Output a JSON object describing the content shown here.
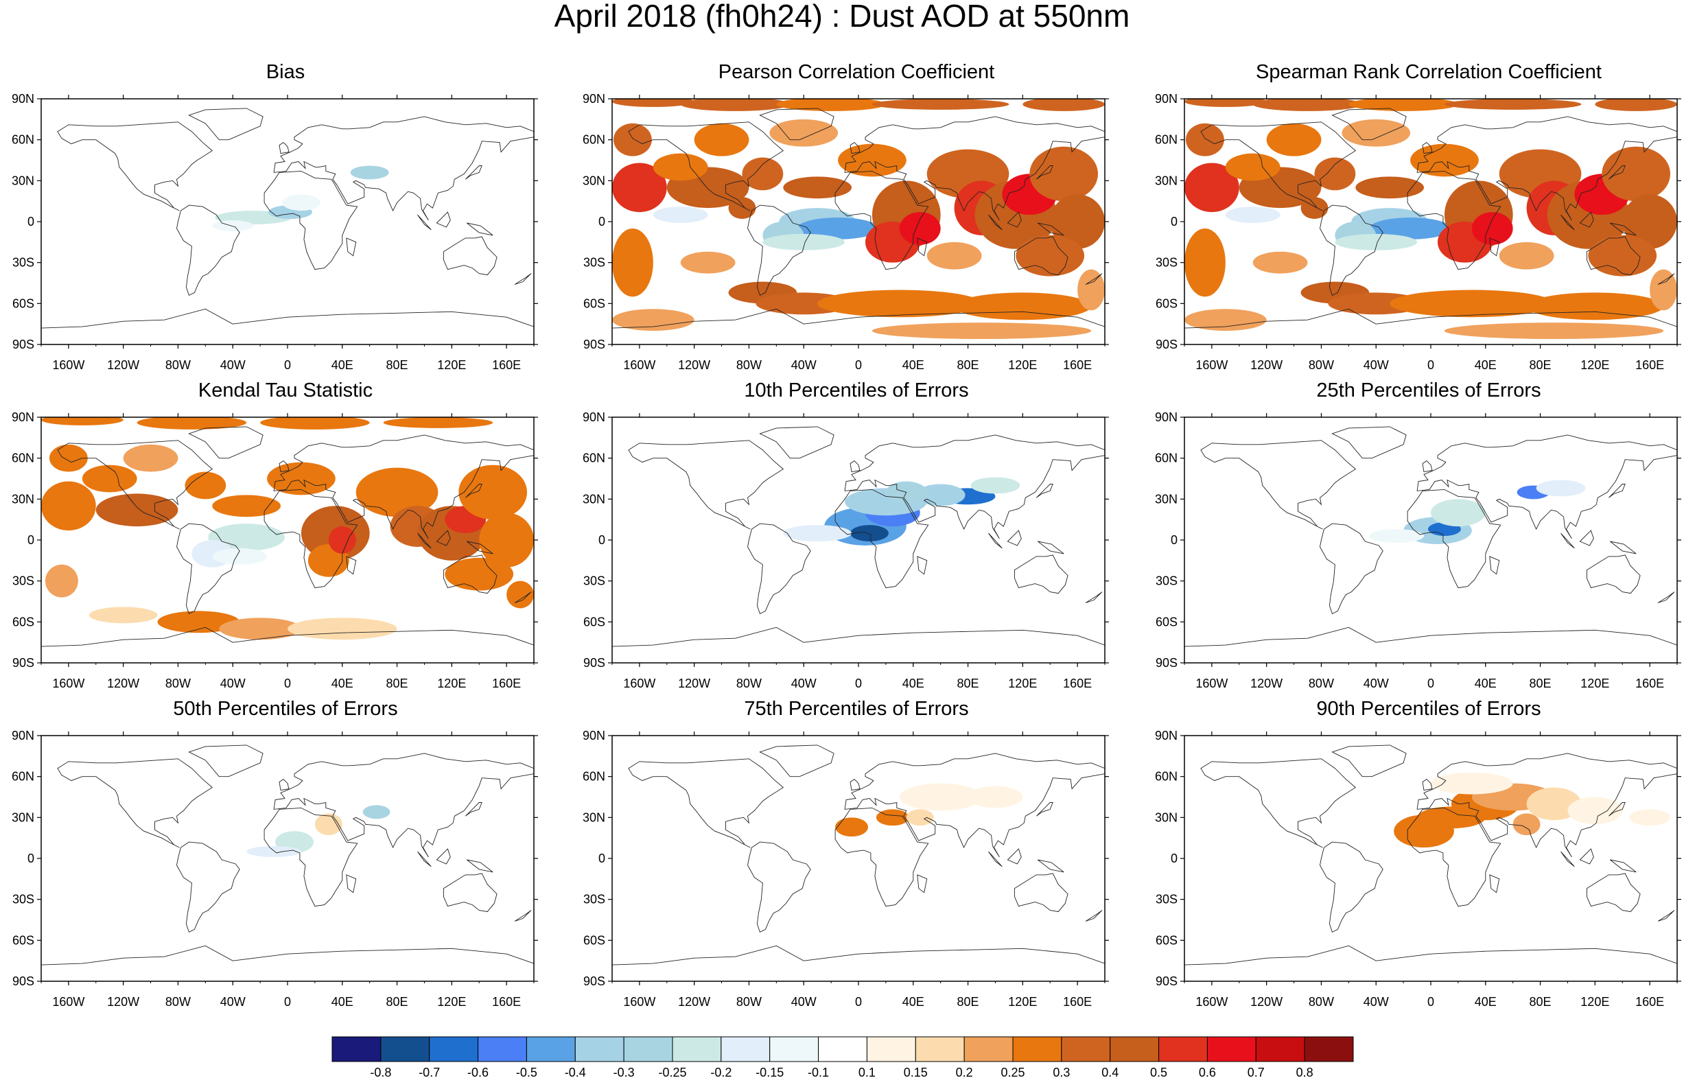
{
  "title": "April 2018 (fh0h24) : Dust AOD at 550nm",
  "lat_labels": [
    "90N",
    "60N",
    "30N",
    "0",
    "30S",
    "60S",
    "90S"
  ],
  "lon_labels": [
    "160W",
    "120W",
    "80W",
    "40W",
    "0",
    "40E",
    "80E",
    "120E",
    "160E"
  ],
  "panels": [
    {
      "title": "Bias",
      "pattern": "bias"
    },
    {
      "title": "Pearson Correlation Coefficient",
      "pattern": "corr"
    },
    {
      "title": "Spearman Rank Correlation Coefficient",
      "pattern": "corr"
    },
    {
      "title": "Kendal Tau Statistic",
      "pattern": "tau"
    },
    {
      "title": "10th Percentiles of Errors",
      "pattern": "p10"
    },
    {
      "title": "25th Percentiles of Errors",
      "pattern": "p25"
    },
    {
      "title": "50th Percentiles of Errors",
      "pattern": "p50"
    },
    {
      "title": "75th Percentiles of Errors",
      "pattern": "p75"
    },
    {
      "title": "90th Percentiles of Errors",
      "pattern": "p90"
    }
  ],
  "colorbar": {
    "labels": [
      "-0.8",
      "-0.7",
      "-0.6",
      "-0.5",
      "-0.4",
      "-0.3",
      "-0.25",
      "-0.2",
      "-0.15",
      "-0.1",
      "0.1",
      "0.15",
      "0.2",
      "0.25",
      "0.3",
      "0.4",
      "0.5",
      "0.6",
      "0.7",
      "0.8"
    ],
    "colors": [
      "#1a1a7a",
      "#134e8f",
      "#1f6fcf",
      "#4a7ff5",
      "#5aa2e6",
      "#a6d2e6",
      "#a8d4e2",
      "#cce9e6",
      "#e2eefa",
      "#eef8fb",
      "#ffffff",
      "#fff4e3",
      "#fcdcae",
      "#f0a15c",
      "#e8770f",
      "#cf6420",
      "#c65e1c",
      "#e0321e",
      "#e8101a",
      "#c80e10",
      "#8c0f0f"
    ]
  }
}
